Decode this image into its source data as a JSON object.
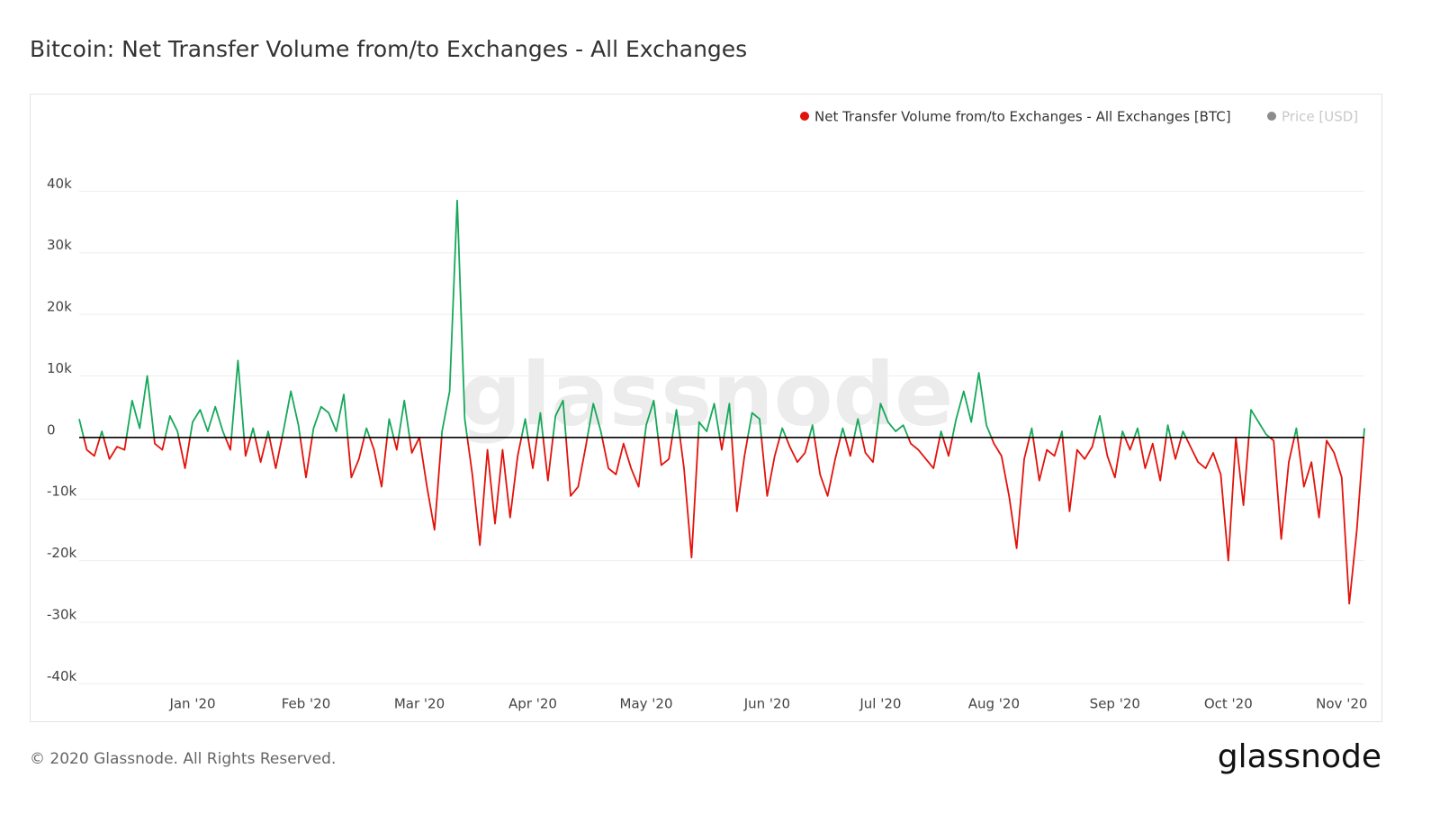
{
  "chart_data": {
    "type": "line",
    "title": "Bitcoin: Net Transfer Volume from/to Exchanges - All Exchanges",
    "footer": "© 2020 Glassnode. All Rights Reserved.",
    "logo": "glassnode",
    "watermark": "glassnode",
    "categories": [
      null,
      null,
      null,
      null,
      null,
      null,
      null,
      null,
      null,
      null,
      null,
      null,
      null,
      null,
      null,
      "Jan '20",
      null,
      null,
      null,
      null,
      null,
      null,
      null,
      null,
      null,
      null,
      null,
      null,
      null,
      null,
      "Feb '20",
      null,
      null,
      null,
      null,
      null,
      null,
      null,
      null,
      null,
      null,
      null,
      null,
      null,
      null,
      "Mar '20",
      null,
      null,
      null,
      null,
      null,
      null,
      null,
      null,
      null,
      null,
      null,
      null,
      null,
      null,
      "Apr '20",
      null,
      null,
      null,
      null,
      null,
      null,
      null,
      null,
      null,
      null,
      null,
      null,
      null,
      null,
      "May '20",
      null,
      null,
      null,
      null,
      null,
      null,
      null,
      null,
      null,
      null,
      null,
      null,
      null,
      null,
      null,
      "Jun '20",
      null,
      null,
      null,
      null,
      null,
      null,
      null,
      null,
      null,
      null,
      null,
      null,
      null,
      null,
      "Jul '20",
      null,
      null,
      null,
      null,
      null,
      null,
      null,
      null,
      null,
      null,
      null,
      null,
      null,
      null,
      "Aug '20",
      null,
      null,
      null,
      null,
      null,
      null,
      null,
      null,
      null,
      null,
      null,
      null,
      null,
      null,
      null,
      "Sep '20",
      null,
      null,
      null,
      null,
      null,
      null,
      null,
      null,
      null,
      null,
      null,
      null,
      null,
      null,
      "Oct '20",
      null,
      null,
      null,
      null,
      null,
      null,
      null,
      null,
      null,
      null,
      null,
      null,
      null,
      null,
      "Nov '20",
      null,
      null,
      null
    ],
    "series": [
      {
        "name": "Net Transfer Volume from/to Exchanges - All Exchanges [BTC]",
        "color": "#e3120b",
        "positive_color": "#16a85a",
        "values": [
          3000,
          -2000,
          -3000,
          1000,
          -3500,
          -1500,
          -2000,
          6000,
          1500,
          10000,
          -1000,
          -2000,
          3500,
          1000,
          -5000,
          2500,
          4500,
          1000,
          5000,
          1000,
          -2000,
          12500,
          -3000,
          1500,
          -4000,
          1000,
          -5000,
          1000,
          7500,
          2000,
          -6500,
          1500,
          5000,
          4000,
          1000,
          7000,
          -6500,
          -3500,
          1500,
          -2000,
          -8000,
          3000,
          -2000,
          6000,
          -2500,
          0,
          -8000,
          -15000,
          1000,
          7500,
          38500,
          3000,
          -6000,
          -17500,
          -2000,
          -14000,
          -2000,
          -13000,
          -3000,
          3000,
          -5000,
          4000,
          -7000,
          3500,
          6000,
          -9500,
          -8000,
          -1500,
          5500,
          1000,
          -5000,
          -6000,
          -1000,
          -5000,
          -8000,
          2000,
          6000,
          -4500,
          -3500,
          4500,
          -5000,
          -19500,
          2500,
          1000,
          5500,
          -2000,
          5500,
          -12000,
          -3000,
          4000,
          3000,
          -9500,
          -3000,
          1500,
          -1500,
          -4000,
          -2500,
          2000,
          -6000,
          -9500,
          -3500,
          1500,
          -3000,
          3000,
          -2500,
          -4000,
          5500,
          2500,
          1000,
          2000,
          -1000,
          -2000,
          -3500,
          -5000,
          1000,
          -3000,
          3000,
          7500,
          2500,
          10500,
          2000,
          -1000,
          -3000,
          -9500,
          -18000,
          -3500,
          1500,
          -7000,
          -2000,
          -3000,
          1000,
          -12000,
          -2000,
          -3500,
          -1500,
          3500,
          -3000,
          -6500,
          1000,
          -2000,
          1500,
          -5000,
          -1000,
          -7000,
          2000,
          -3500,
          1000,
          -1500,
          -4000,
          -5000,
          -2500,
          -6000,
          -20000,
          0,
          -11000,
          4500,
          2500,
          500,
          -500,
          -16500,
          -4000,
          1500,
          -8000,
          -4000,
          -13000,
          -500,
          -2500,
          -6500,
          -27000,
          -15000,
          1500
        ]
      }
    ],
    "inactive_legend": {
      "name": "Price [USD]",
      "color": "#8c8c8c"
    },
    "ylim": [
      -42000,
      50000
    ],
    "yticks": [
      {
        "value": -40000,
        "label": "-40k"
      },
      {
        "value": -30000,
        "label": "-30k"
      },
      {
        "value": -20000,
        "label": "-20k"
      },
      {
        "value": -10000,
        "label": "-10k"
      },
      0,
      {
        "value": 10000,
        "label": "10k"
      },
      {
        "value": 20000,
        "label": "20k"
      },
      {
        "value": 30000,
        "label": "30k"
      },
      {
        "value": 40000,
        "label": "40k"
      }
    ],
    "grid": true
  }
}
